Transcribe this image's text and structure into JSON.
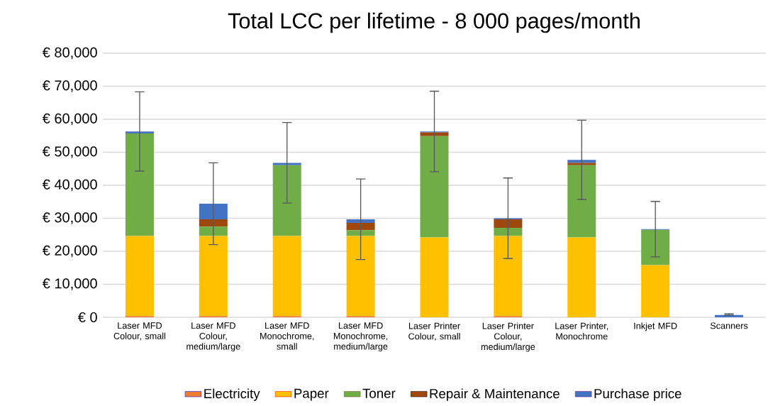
{
  "chart_data": {
    "type": "bar",
    "title": "Total LCC per lifetime - 8 000 pages/month",
    "categories": [
      "Laser MFD Colour, small",
      "Laser MFD Colour, medium/large",
      "Laser MFD Monochrome, small",
      "Laser MFD Monochrome, medium/large",
      "Laser Printer Colour, small",
      "Laser Printer Colour, medium/large",
      "Laser Printer, Monochrome",
      "Inkjet MFD",
      "Scanners"
    ],
    "stacked": true,
    "series": [
      {
        "name": "Electricity",
        "color": "#ed7d31",
        "values": [
          400,
          400,
          400,
          400,
          0,
          400,
          0,
          0,
          0
        ]
      },
      {
        "name": "Paper",
        "color": "#ffc000",
        "values": [
          24200,
          24200,
          24200,
          24200,
          24200,
          24200,
          24200,
          15800,
          0
        ]
      },
      {
        "name": "Toner",
        "color": "#70ad47",
        "values": [
          31100,
          2900,
          21500,
          1800,
          30700,
          2500,
          21900,
          10700,
          0
        ]
      },
      {
        "name": "Repair & Maintenance",
        "color": "#9e480e",
        "values": [
          0,
          2200,
          0,
          2200,
          1100,
          2600,
          700,
          0,
          0
        ]
      },
      {
        "name": "Purchase price",
        "color": "#4472c4",
        "values": [
          600,
          4700,
          700,
          1100,
          300,
          300,
          900,
          200,
          700
        ],
        "errors": [
          12000,
          12400,
          12200,
          12200,
          12200,
          12200,
          12000,
          8400,
          [
            700,
            1100
          ]
        ]
      }
    ],
    "ylim": [
      0,
      80000
    ],
    "yticks": [
      {
        "value": 0,
        "label": "€ 0"
      },
      {
        "value": 10000,
        "label": "€ 10,000"
      },
      {
        "value": 20000,
        "label": "€ 20,000"
      },
      {
        "value": 30000,
        "label": "€ 30,000"
      },
      {
        "value": 40000,
        "label": "€ 40,000"
      },
      {
        "value": 50000,
        "label": "€ 50,000"
      },
      {
        "value": 60000,
        "label": "€ 60,000"
      },
      {
        "value": 70000,
        "label": "€ 70,000"
      },
      {
        "value": 80000,
        "label": "€ 80,000"
      }
    ],
    "grid": "y",
    "legend": "bottom"
  }
}
